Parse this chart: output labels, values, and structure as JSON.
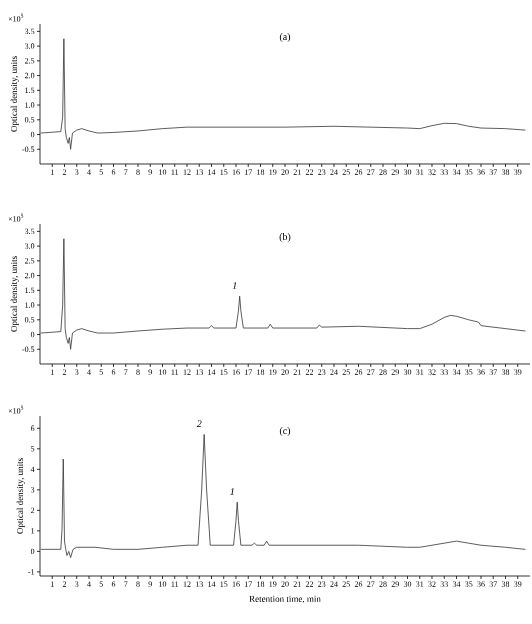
{
  "chart_data": [
    {
      "type": "line",
      "title": "(a)",
      "ylabel": "Optical density, units",
      "annotations": [
        "×10$^{5}$"
      ],
      "xlim": [
        0,
        40
      ],
      "ylim": [
        -1,
        3.75
      ],
      "xticks": [
        1,
        2,
        3,
        4,
        5,
        6,
        7,
        8,
        9,
        10,
        11,
        12,
        13,
        14,
        15,
        16,
        17,
        18,
        19,
        20,
        21,
        22,
        23,
        24,
        25,
        26,
        27,
        28,
        29,
        30,
        31,
        32,
        33,
        34,
        35,
        36,
        37,
        38,
        39
      ],
      "yticks": [
        -0.5,
        0,
        0.5,
        {
          "value": 1,
          "label": "1.0"
        },
        1.5,
        {
          "value": 2,
          "label": "2.0"
        },
        2.5,
        {
          "value": 3,
          "label": "3.0"
        },
        3.5
      ],
      "grid": false,
      "series": [
        {
          "color": "#333333",
          "x": [
            0.1,
            1.7,
            1.85,
            1.95,
            2.05,
            2.15,
            2.3,
            2.4,
            2.5,
            2.65,
            3,
            3.4,
            4,
            4.7,
            6,
            8,
            10,
            12,
            16,
            20,
            24,
            28,
            30,
            31,
            32,
            33,
            34,
            35,
            36,
            38,
            39.6
          ],
          "values": [
            0.05,
            0.1,
            0.6,
            3.25,
            0.2,
            -0.1,
            -0.3,
            -0.1,
            -0.5,
            0.05,
            0.15,
            0.2,
            0.12,
            0.05,
            0.07,
            0.12,
            0.2,
            0.25,
            0.25,
            0.25,
            0.28,
            0.24,
            0.22,
            0.2,
            0.3,
            0.38,
            0.37,
            0.28,
            0.22,
            0.2,
            0.15
          ]
        }
      ]
    },
    {
      "type": "line",
      "title": "(b)",
      "ylabel": "Optical density, units",
      "annotations": [
        "×10$^{5}$",
        {
          "text": "*1*",
          "x": 16.3,
          "y": 1.3
        }
      ],
      "xlim": [
        0,
        40
      ],
      "ylim": [
        -1,
        3.75
      ],
      "xticks": [
        1,
        2,
        3,
        4,
        5,
        6,
        7,
        8,
        9,
        10,
        11,
        12,
        13,
        14,
        15,
        16,
        17,
        18,
        19,
        20,
        21,
        22,
        23,
        24,
        25,
        26,
        27,
        28,
        29,
        30,
        31,
        32,
        33,
        34,
        35,
        36,
        37,
        38,
        39
      ],
      "yticks": [
        -0.5,
        0,
        0.5,
        {
          "value": 1,
          "label": "1.0"
        },
        1.5,
        {
          "value": 2,
          "label": "2.0"
        },
        2.5,
        {
          "value": 3,
          "label": "3.0"
        },
        3.5
      ],
      "grid": false,
      "series": [
        {
          "color": "#333333",
          "x": [
            0.1,
            1.7,
            1.85,
            1.95,
            2.05,
            2.15,
            2.3,
            2.4,
            2.5,
            2.65,
            3,
            3.4,
            4,
            4.7,
            6,
            8,
            10,
            12,
            13.8,
            14,
            14.2,
            16,
            16.2,
            16.3,
            16.4,
            16.6,
            18.6,
            18.8,
            19,
            22.6,
            22.8,
            23,
            26,
            30,
            31,
            32,
            33,
            33.5,
            34,
            35,
            35.8,
            36,
            37,
            38,
            39.6
          ],
          "values": [
            0.05,
            0.1,
            1.0,
            3.25,
            0.2,
            -0.1,
            -0.3,
            -0.1,
            -0.5,
            0.05,
            0.15,
            0.2,
            0.12,
            0.05,
            0.05,
            0.12,
            0.18,
            0.22,
            0.22,
            0.3,
            0.22,
            0.22,
            0.8,
            1.3,
            0.8,
            0.22,
            0.22,
            0.35,
            0.22,
            0.22,
            0.32,
            0.25,
            0.28,
            0.2,
            0.2,
            0.35,
            0.58,
            0.65,
            0.62,
            0.5,
            0.42,
            0.3,
            0.25,
            0.2,
            0.12
          ]
        }
      ]
    },
    {
      "type": "line",
      "title": "(c)",
      "ylabel": "Optical density, units",
      "xlabel": "Retention time, min",
      "annotations": [
        "×10$^{5}$",
        {
          "text": "*2*",
          "x": 13.4,
          "y": 5.7
        },
        {
          "text": "*1*",
          "x": 16.1,
          "y": 2.4
        }
      ],
      "xlim": [
        0,
        40
      ],
      "ylim": [
        -1.2,
        6.6
      ],
      "xticks": [
        1,
        2,
        3,
        4,
        5,
        6,
        7,
        8,
        9,
        10,
        11,
        12,
        13,
        14,
        15,
        16,
        17,
        18,
        19,
        20,
        21,
        22,
        23,
        24,
        25,
        26,
        27,
        28,
        29,
        30,
        31,
        32,
        33,
        34,
        35,
        36,
        37,
        38,
        39
      ],
      "yticks": [
        -1,
        0,
        1,
        2,
        3,
        4,
        5,
        6
      ],
      "grid": false,
      "series": [
        {
          "color": "#333333",
          "x": [
            0.1,
            1.7,
            1.8,
            1.9,
            2.0,
            2.1,
            2.2,
            2.35,
            2.5,
            2.7,
            3,
            3.5,
            4.5,
            6,
            8,
            10,
            12,
            12.9,
            13.2,
            13.4,
            13.6,
            13.9,
            14.5,
            15.8,
            16.0,
            16.1,
            16.2,
            16.4,
            17.3,
            17.5,
            17.7,
            18.3,
            18.5,
            18.7,
            22,
            26,
            30,
            31,
            32,
            33,
            34,
            35,
            36,
            38,
            39.6
          ],
          "values": [
            0.1,
            0.1,
            1.1,
            4.5,
            0.5,
            0.1,
            -0.2,
            0.0,
            -0.3,
            0.1,
            0.2,
            0.2,
            0.2,
            0.1,
            0.1,
            0.2,
            0.3,
            0.3,
            3.0,
            5.7,
            3.0,
            0.3,
            0.3,
            0.3,
            1.5,
            2.4,
            1.5,
            0.3,
            0.3,
            0.4,
            0.3,
            0.3,
            0.5,
            0.3,
            0.3,
            0.3,
            0.2,
            0.2,
            0.3,
            0.4,
            0.5,
            0.4,
            0.3,
            0.2,
            0.1
          ]
        }
      ]
    }
  ]
}
